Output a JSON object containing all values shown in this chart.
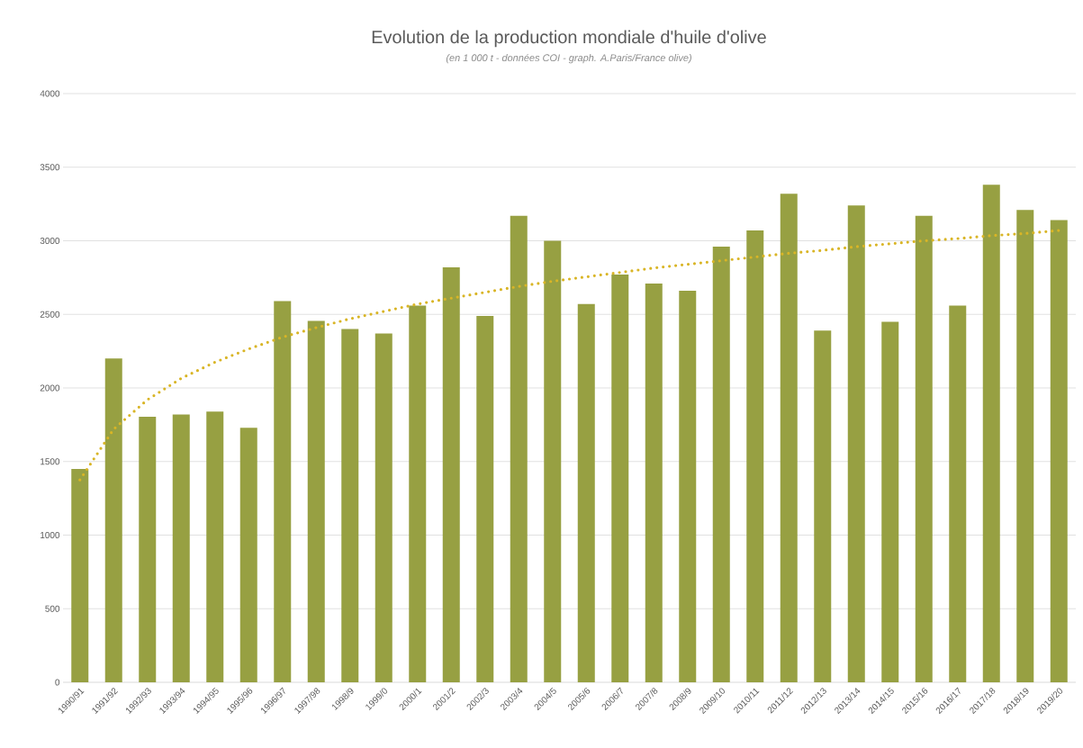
{
  "chart_data": {
    "type": "bar",
    "title": "Evolution de la production mondiale d'huile d'olive",
    "subtitle": "(en 1 000 t - données COI - graph. A.Paris/France olive)",
    "categories": [
      "1990/91",
      "1991/92",
      "1992/93",
      "1993/94",
      "1994/95",
      "1995/96",
      "1996/97",
      "1997/98",
      "1998/9",
      "1999/0",
      "2000/1",
      "2001/2",
      "2002/3",
      "2003/4",
      "2004/5",
      "2005/6",
      "2006/7",
      "2007/8",
      "2008/9",
      "2009/10",
      "2010/11",
      "2011/12",
      "2012/13",
      "2013/14",
      "2014/15",
      "2015/16",
      "2016/17",
      "2017/18",
      "2018/19",
      "2019/20"
    ],
    "series": [
      {
        "color": "#97a042",
        "values": [
          1450,
          2200,
          1805,
          1820,
          1840,
          1730,
          2590,
          2455,
          2400,
          2370,
          2560,
          2820,
          2490,
          3170,
          3000,
          2570,
          2770,
          2710,
          2660,
          2960,
          3070,
          3320,
          2390,
          3240,
          2450,
          3170,
          2560,
          3380,
          3210,
          3140
        ]
      },
      {
        "type": "line",
        "color": "#d9b526",
        "line_style": "dotted",
        "marker": "none",
        "values": [
          1375,
          1720,
          1920,
          2065,
          2175,
          2265,
          2345,
          2410,
          2470,
          2520,
          2570,
          2610,
          2650,
          2690,
          2725,
          2755,
          2785,
          2815,
          2840,
          2865,
          2890,
          2915,
          2935,
          2960,
          2980,
          3000,
          3015,
          3035,
          3050,
          3070
        ]
      }
    ],
    "ylim": [
      0,
      4000
    ],
    "yticks": [
      0,
      500,
      1000,
      1500,
      2000,
      2500,
      3000,
      3500,
      4000
    ],
    "grid": "y"
  }
}
